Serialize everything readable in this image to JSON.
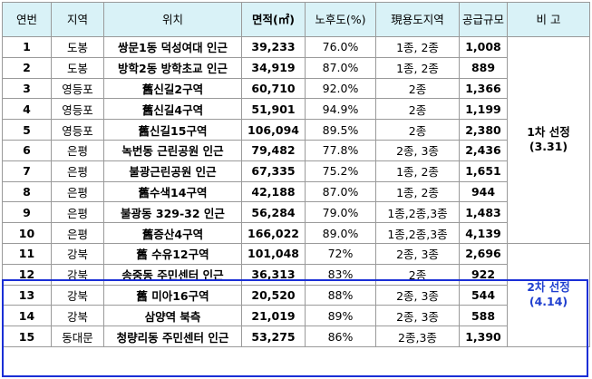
{
  "headers": [
    "연번",
    "지역",
    "위치",
    "면적(㎡)",
    "노후도(%)",
    "現용도지역",
    "공급규모",
    "비 고"
  ],
  "rows": [
    {
      "no": "1",
      "region": "도봉",
      "location": "쌍문1동 덕성여대 인근",
      "area": "39,233",
      "aging": "76.0%",
      "zoning": "1종, 2종",
      "supply": "1,008"
    },
    {
      "no": "2",
      "region": "도봉",
      "location": "방학2동 방학초교 인근",
      "area": "34,919",
      "aging": "87.0%",
      "zoning": "1종, 2종",
      "supply": "889"
    },
    {
      "no": "3",
      "region": "영등포",
      "location": "舊신길2구역",
      "area": "60,710",
      "aging": "92.0%",
      "zoning": "2종",
      "supply": "1,366"
    },
    {
      "no": "4",
      "region": "영등포",
      "location": "舊신길4구역",
      "area": "51,901",
      "aging": "94.9%",
      "zoning": "2종",
      "supply": "1,199"
    },
    {
      "no": "5",
      "region": "영등포",
      "location": "舊신길15구역",
      "area": "106,094",
      "aging": "89.5%",
      "zoning": "2종",
      "supply": "2,380"
    },
    {
      "no": "6",
      "region": "은평",
      "location": "녹번동 근린공원 인근",
      "area": "79,482",
      "aging": "77.8%",
      "zoning": "2종, 3종",
      "supply": "2,436"
    },
    {
      "no": "7",
      "region": "은평",
      "location": "불광근린공원 인근",
      "area": "67,335",
      "aging": "75.2%",
      "zoning": "1종, 2종",
      "supply": "1,651"
    },
    {
      "no": "8",
      "region": "은평",
      "location": "舊수색14구역",
      "area": "42,188",
      "aging": "87.0%",
      "zoning": "1종, 2종",
      "supply": "944"
    },
    {
      "no": "9",
      "region": "은평",
      "location": "불광동 329-32 인근",
      "area": "56,284",
      "aging": "79.0%",
      "zoning": "1종,2종,3종",
      "supply": "1,483"
    },
    {
      "no": "10",
      "region": "은평",
      "location": "舊증산4구역",
      "area": "166,022",
      "aging": "89.0%",
      "zoning": "1종,2종,3종",
      "supply": "4,139"
    },
    {
      "no": "11",
      "region": "강북",
      "location": "舊 수유12구역",
      "area": "101,048",
      "aging": "72%",
      "zoning": "2종, 3종",
      "supply": "2,696"
    },
    {
      "no": "12",
      "region": "강북",
      "location": "송중동 주민센터 인근",
      "area": "36,313",
      "aging": "83%",
      "zoning": "2종",
      "supply": "922"
    },
    {
      "no": "13",
      "region": "강북",
      "location": "舊 미아16구역",
      "area": "20,520",
      "aging": "88%",
      "zoning": "2종, 3종",
      "supply": "544"
    },
    {
      "no": "14",
      "region": "강북",
      "location": "삼양역 북측",
      "area": "21,019",
      "aging": "89%",
      "zoning": "2종, 3종",
      "supply": "588"
    },
    {
      "no": "15",
      "region": "동대문",
      "location": "청량리동 주민센터 인근",
      "area": "53,275",
      "aging": "86%",
      "zoning": "2종,3종",
      "supply": "1,390"
    }
  ],
  "notes": {
    "first_title": "1차 선정",
    "first_date": "(3.31)",
    "second_title": "2차 선정",
    "second_date": "(4.14)"
  },
  "colors": {
    "header_bg": "#d9f2f7",
    "highlight_border": "#1a2fd6",
    "second_note_text": "#1f3fcf"
  }
}
